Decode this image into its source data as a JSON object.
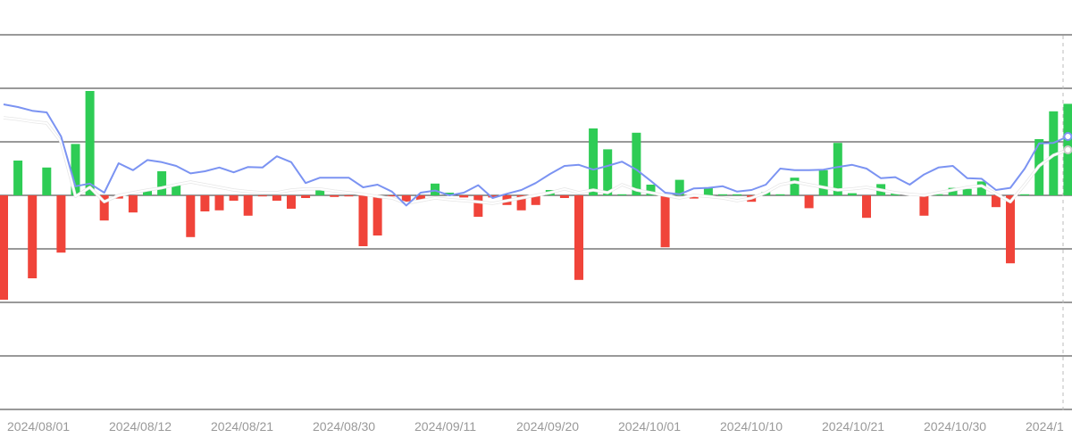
{
  "chart_data": {
    "type": "bar",
    "x_tick_labels": [
      "2024/08/01",
      "2024/08/12",
      "2024/08/21",
      "2024/08/30",
      "2024/09/11",
      "2024/09/20",
      "2024/10/01",
      "2024/10/10",
      "2024/10/21",
      "2024/10/30",
      "2024/1"
    ],
    "ylim": [
      -4,
      3
    ],
    "grid": true,
    "legend": "none",
    "colors": {
      "up": "#2ecc55",
      "down": "#f0443a",
      "dif_line": "#7b93f2",
      "dea_line": "#ffffff",
      "grid": "#333333",
      "tick_label": "#999999"
    },
    "histogram": [
      -1.95,
      0.65,
      -1.55,
      0.52,
      -1.07,
      0.96,
      1.95,
      -0.47,
      -0.06,
      -0.32,
      0.1,
      0.45,
      0.2,
      -0.78,
      -0.3,
      -0.28,
      -0.1,
      -0.38,
      -0.02,
      -0.1,
      -0.25,
      -0.05,
      0.1,
      -0.03,
      -0.02,
      -0.95,
      -0.75,
      -0.02,
      -0.12,
      -0.1,
      0.22,
      0.05,
      -0.04,
      -0.4,
      -0.04,
      -0.18,
      -0.28,
      -0.18,
      0.1,
      -0.05,
      -1.58,
      1.25,
      0.86,
      0.02,
      1.17,
      0.2,
      -0.97,
      0.29,
      -0.06,
      0.14,
      0.02,
      0.02,
      -0.12,
      0.06,
      0.02,
      0.33,
      -0.24,
      0.47,
      0.98,
      0.04,
      -0.42,
      0.21,
      0.05,
      0.03,
      -0.38,
      0.02,
      0.14,
      0.12,
      0.26,
      -0.22,
      -1.27,
      0.02,
      1.05,
      1.57,
      1.71
    ],
    "dif": [
      1.7,
      1.65,
      1.58,
      1.55,
      1.1,
      0.17,
      0.22,
      0.05,
      0.6,
      0.47,
      0.66,
      0.62,
      0.55,
      0.41,
      0.45,
      0.52,
      0.43,
      0.53,
      0.52,
      0.73,
      0.62,
      0.23,
      0.33,
      0.33,
      0.33,
      0.15,
      0.2,
      0.07,
      -0.19,
      0.05,
      0.09,
      0.0,
      0.05,
      0.19,
      -0.05,
      0.03,
      0.1,
      0.23,
      0.4,
      0.55,
      0.57,
      0.48,
      0.55,
      0.63,
      0.48,
      0.27,
      0.05,
      0.02,
      0.13,
      0.14,
      0.17,
      0.07,
      0.1,
      0.2,
      0.5,
      0.47,
      0.47,
      0.48,
      0.53,
      0.57,
      0.5,
      0.32,
      0.34,
      0.2,
      0.39,
      0.52,
      0.55,
      0.32,
      0.31,
      0.1,
      0.14,
      0.5,
      0.97,
      0.98,
      1.1
    ],
    "dea": [
      1.45,
      1.42,
      1.38,
      1.35,
      1.0,
      -0.02,
      0.15,
      -0.12,
      0.0,
      0.05,
      0.1,
      0.14,
      0.2,
      0.25,
      0.2,
      0.15,
      0.1,
      0.07,
      0.05,
      0.05,
      0.1,
      0.12,
      0.12,
      0.08,
      0.05,
      0.02,
      -0.02,
      -0.05,
      -0.15,
      -0.1,
      -0.05,
      -0.08,
      -0.1,
      -0.12,
      -0.15,
      -0.1,
      -0.05,
      0.0,
      0.05,
      0.12,
      0.05,
      0.1,
      0.05,
      0.2,
      0.1,
      0.05,
      0.0,
      -0.05,
      0.0,
      -0.02,
      -0.05,
      -0.1,
      -0.05,
      0.05,
      0.2,
      0.25,
      0.2,
      0.15,
      0.1,
      0.12,
      0.15,
      0.1,
      0.05,
      0.02,
      0.0,
      0.05,
      0.1,
      0.15,
      0.18,
      0.03,
      -0.12,
      0.2,
      0.55,
      0.75,
      0.85
    ]
  }
}
